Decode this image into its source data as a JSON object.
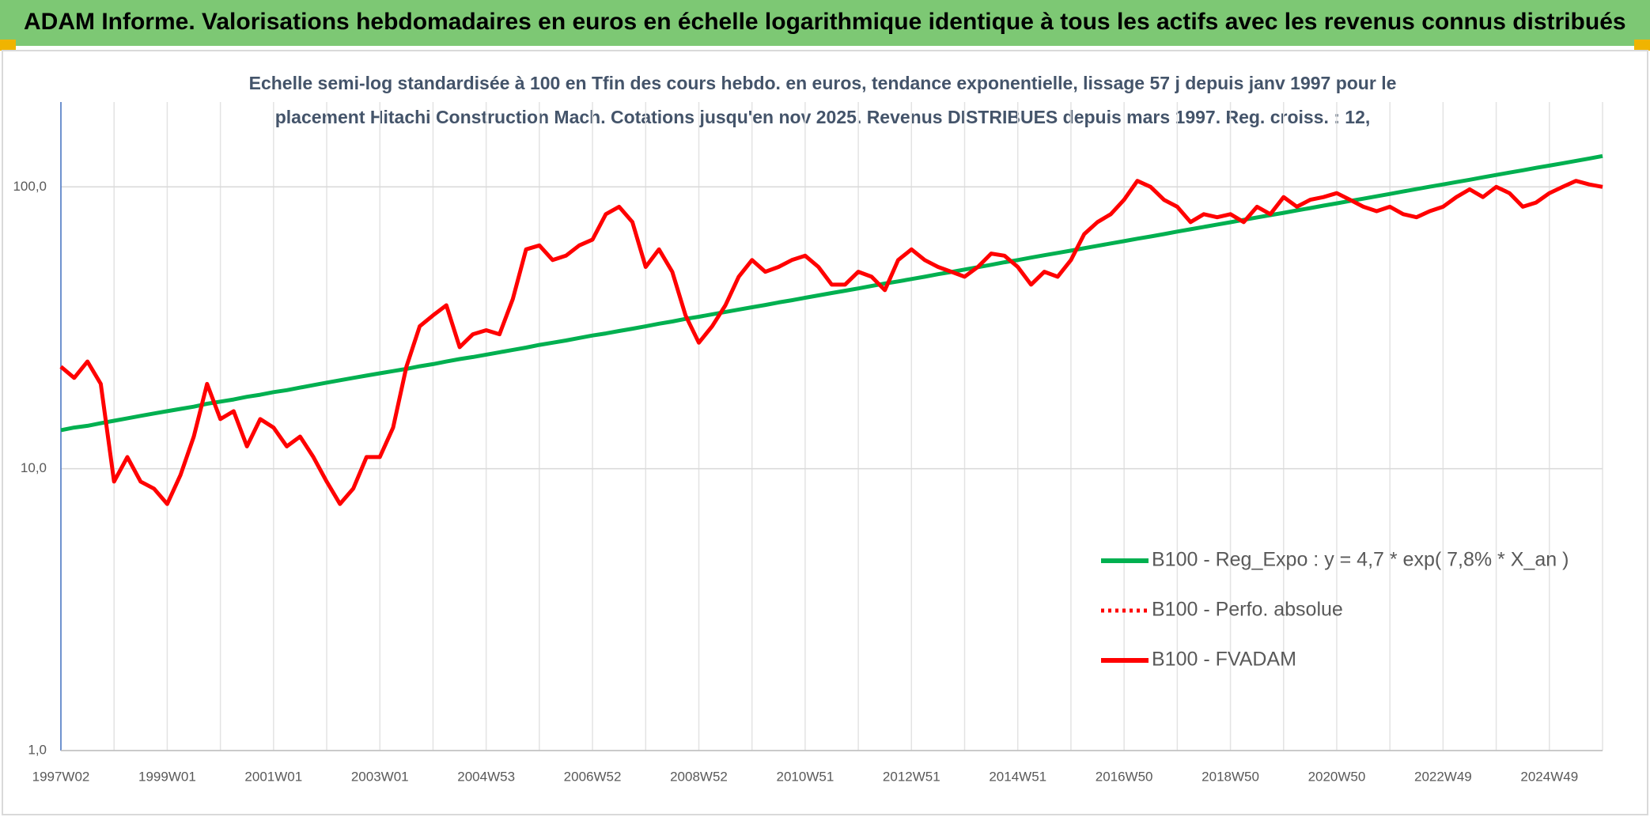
{
  "chart_data": {
    "type": "line",
    "title": "ADAM Informe. Valorisations hebdomadaires en euros en échelle logarithmique identique à tous les actifs avec les revenus connus distribués",
    "subtitle": [
      "Echelle semi-log standardisée à 100 en Tfin des cours hebdo. en euros, tendance exponentielle, lissage 57 j depuis janv 1997 pour le",
      "placement Hitachi Construction Mach. Cotations jusqu'en nov 2025. Revenus DISTRIBUES depuis mars 1997. Reg. croiss. : 12,"
    ],
    "log_scale": true,
    "grid": true,
    "legend": "right",
    "ylim": [
      1,
      200
    ],
    "yticks": [
      {
        "value": 1,
        "label": "1,0"
      },
      {
        "value": 10,
        "label": "10,0"
      },
      {
        "value": 100,
        "label": "100,0"
      }
    ],
    "categories": [
      "1997W02",
      null,
      null,
      null,
      null,
      null,
      null,
      null,
      "1999W01",
      null,
      null,
      null,
      null,
      null,
      null,
      null,
      "2001W01",
      null,
      null,
      null,
      null,
      null,
      null,
      null,
      "2003W01",
      null,
      null,
      null,
      null,
      null,
      null,
      null,
      "2004W53",
      null,
      null,
      null,
      null,
      null,
      null,
      null,
      "2006W52",
      null,
      null,
      null,
      null,
      null,
      null,
      null,
      "2008W52",
      null,
      null,
      null,
      null,
      null,
      null,
      null,
      "2010W51",
      null,
      null,
      null,
      null,
      null,
      null,
      null,
      "2012W51",
      null,
      null,
      null,
      null,
      null,
      null,
      null,
      "2014W51",
      null,
      null,
      null,
      null,
      null,
      null,
      null,
      "2016W50",
      null,
      null,
      null,
      null,
      null,
      null,
      null,
      "2018W50",
      null,
      null,
      null,
      null,
      null,
      null,
      null,
      "2020W50",
      null,
      null,
      null,
      null,
      null,
      null,
      null,
      "2022W49",
      null,
      null,
      null,
      null,
      null,
      null,
      null,
      "2024W49",
      null,
      null,
      null,
      null
    ],
    "series": [
      {
        "name": "B100 - Reg_Expo : y = 4,7 * exp( 7,8% *  X_an )",
        "color": "#00b050",
        "style": "solid",
        "values": [
          13.7,
          14.0,
          14.2,
          14.5,
          14.8,
          15.1,
          15.4,
          15.7,
          16.0,
          16.3,
          16.6,
          17.0,
          17.3,
          17.6,
          18.0,
          18.3,
          18.7,
          19.0,
          19.4,
          19.8,
          20.2,
          20.6,
          21.0,
          21.4,
          21.8,
          22.2,
          22.6,
          23.1,
          23.5,
          24.0,
          24.5,
          24.9,
          25.4,
          25.9,
          26.4,
          26.9,
          27.5,
          28.0,
          28.5,
          29.1,
          29.7,
          30.2,
          30.8,
          31.4,
          32.0,
          32.7,
          33.3,
          34.0,
          34.6,
          35.3,
          36.0,
          36.7,
          37.4,
          38.1,
          38.9,
          39.6,
          40.4,
          41.2,
          42.0,
          42.8,
          43.6,
          44.5,
          45.4,
          46.2,
          47.1,
          48.0,
          49.0,
          49.9,
          50.9,
          51.9,
          52.9,
          54.0,
          55.0,
          56.1,
          57.2,
          58.3,
          59.4,
          60.6,
          61.8,
          63.0,
          64.2,
          65.5,
          66.7,
          68.0,
          69.4,
          70.7,
          72.1,
          73.5,
          74.9,
          76.4,
          77.9,
          79.4,
          80.9,
          82.5,
          84.1,
          85.8,
          87.4,
          89.1,
          90.8,
          92.6,
          94.4,
          96.3,
          98.2,
          100.1,
          102.0,
          104.0,
          106.0,
          108.1,
          110.2,
          112.4,
          114.5,
          116.8,
          119.0,
          121.3,
          123.7,
          126.1,
          128.6
        ]
      },
      {
        "name": "B100 - Perfo. absolue",
        "color": "#ff0000",
        "style": "dotted",
        "values": [
          23,
          21,
          24,
          20,
          9,
          11,
          9,
          8.5,
          7.5,
          9.5,
          13,
          20,
          15,
          16,
          12,
          15,
          14,
          12,
          13,
          11,
          9,
          7.5,
          8.5,
          11,
          11,
          14,
          23,
          32,
          35,
          38,
          27,
          30,
          31,
          30,
          40,
          60,
          62,
          55,
          57,
          62,
          65,
          80,
          85,
          75,
          52,
          60,
          50,
          35,
          28,
          32,
          38,
          48,
          55,
          50,
          52,
          55,
          57,
          52,
          45,
          45,
          50,
          48,
          43,
          55,
          60,
          55,
          52,
          50,
          48,
          52,
          58,
          57,
          52,
          45,
          50,
          48,
          55,
          68,
          75,
          80,
          90,
          105,
          100,
          90,
          85,
          75,
          80,
          78,
          80,
          75,
          85,
          80,
          92,
          85,
          90,
          92,
          95,
          90,
          85,
          82,
          85,
          80,
          78,
          82,
          85,
          92,
          98,
          92,
          100,
          95,
          85,
          88,
          95,
          100,
          105,
          102,
          100
        ]
      },
      {
        "name": "B100 - FVADAM",
        "color": "#ff0000",
        "style": "solid",
        "values": [
          23,
          21,
          24,
          20,
          9,
          11,
          9,
          8.5,
          7.5,
          9.5,
          13,
          20,
          15,
          16,
          12,
          15,
          14,
          12,
          13,
          11,
          9,
          7.5,
          8.5,
          11,
          11,
          14,
          23,
          32,
          35,
          38,
          27,
          30,
          31,
          30,
          40,
          60,
          62,
          55,
          57,
          62,
          65,
          80,
          85,
          75,
          52,
          60,
          50,
          35,
          28,
          32,
          38,
          48,
          55,
          50,
          52,
          55,
          57,
          52,
          45,
          45,
          50,
          48,
          43,
          55,
          60,
          55,
          52,
          50,
          48,
          52,
          58,
          57,
          52,
          45,
          50,
          48,
          55,
          68,
          75,
          80,
          90,
          105,
          100,
          90,
          85,
          75,
          80,
          78,
          80,
          75,
          85,
          80,
          92,
          85,
          90,
          92,
          95,
          90,
          85,
          82,
          85,
          80,
          78,
          82,
          85,
          92,
          98,
          92,
          100,
          95,
          85,
          88,
          95,
          100,
          105,
          102,
          100
        ]
      }
    ]
  }
}
